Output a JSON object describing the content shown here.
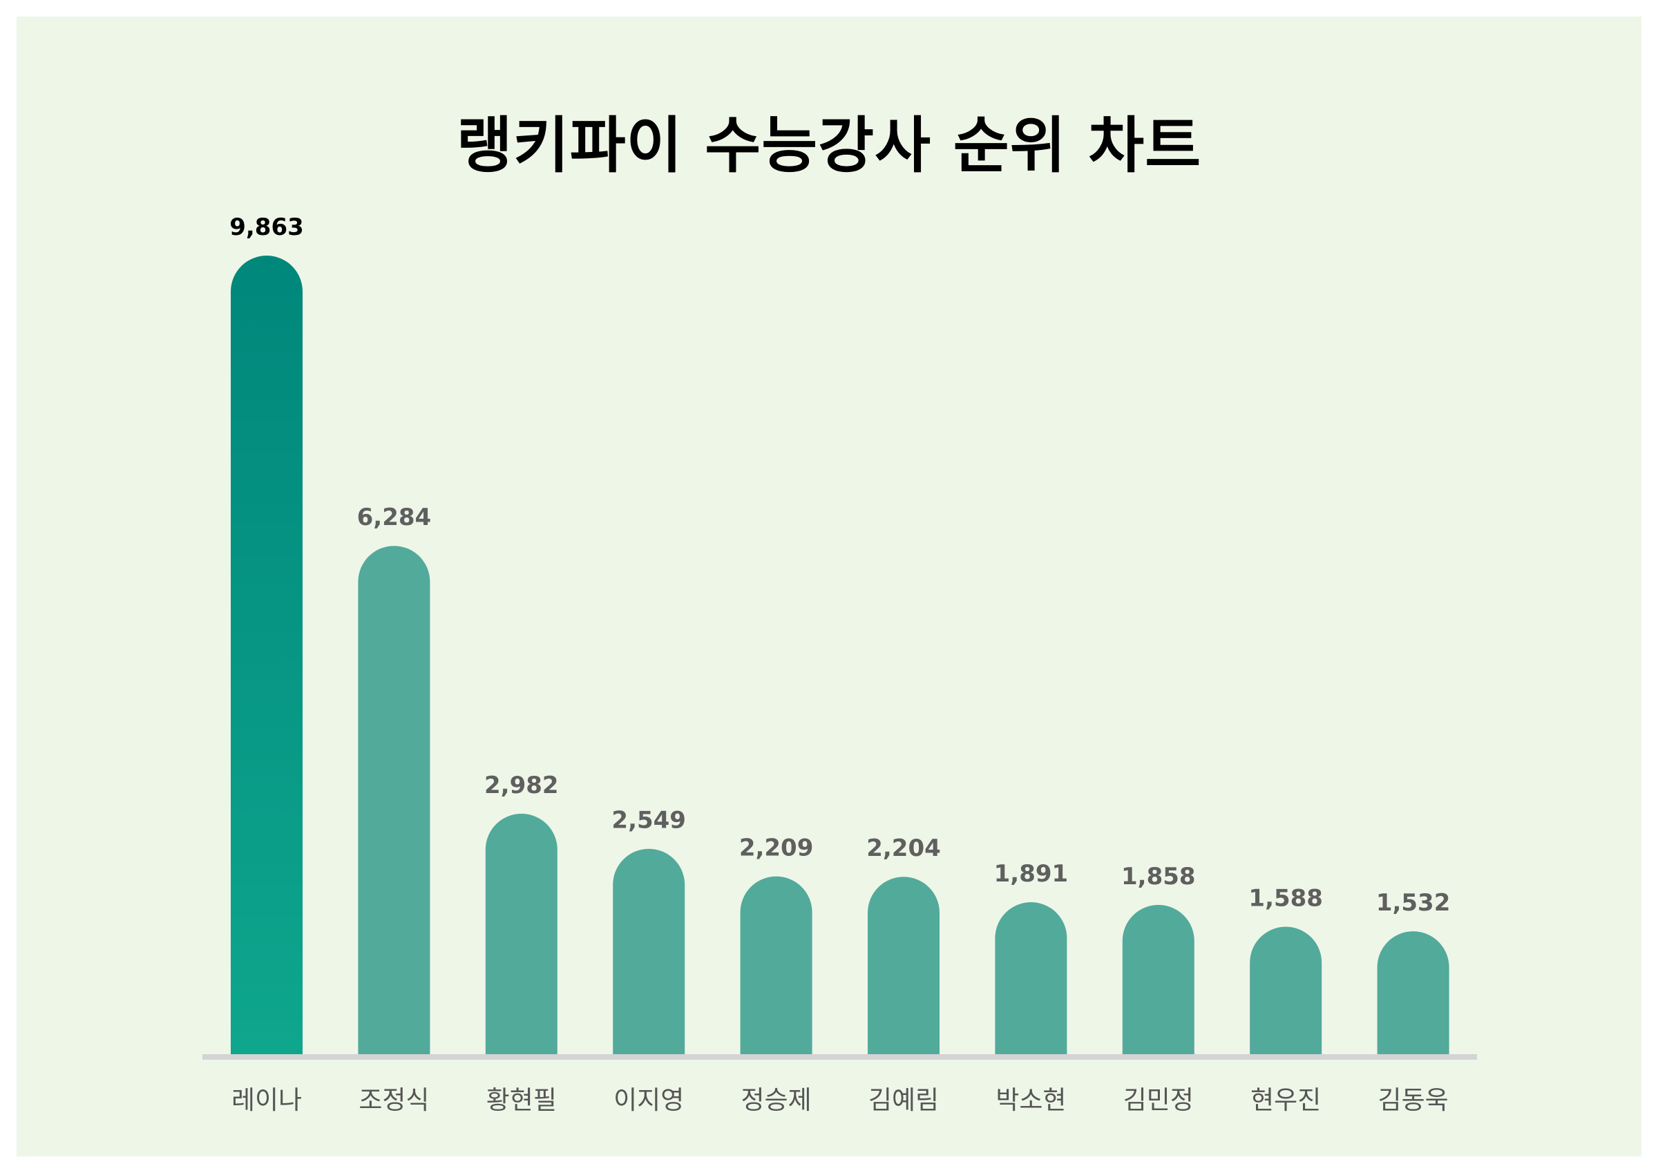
{
  "chart_data": {
    "type": "bar",
    "title": "랭키파이 수능강사 순위 차트",
    "xlabel": "",
    "ylabel": "",
    "categories": [
      "레이나",
      "조정식",
      "황현필",
      "이지영",
      "정승제",
      "김예림",
      "박소현",
      "김민정",
      "현우진",
      "김동욱"
    ],
    "values": [
      9863,
      6284,
      2982,
      2549,
      2209,
      2204,
      1891,
      1858,
      1588,
      1532
    ],
    "value_labels": [
      "9,863",
      "6,284",
      "2,982",
      "2,549",
      "2,209",
      "2,204",
      "1,891",
      "1,858",
      "1,588",
      "1,532"
    ],
    "ylim": [
      0,
      9863
    ],
    "grid": false,
    "legend": "none",
    "colors": {
      "background": "#eef6e8",
      "bar": "#52aa9b",
      "top_bar_gradient_top": "#00877b",
      "top_bar_gradient_bottom": "#0ea68d",
      "baseline": "#d4d4d4",
      "top_value_label": "#000000",
      "value_label": "#5f5f5f",
      "category_label": "#555555"
    }
  }
}
